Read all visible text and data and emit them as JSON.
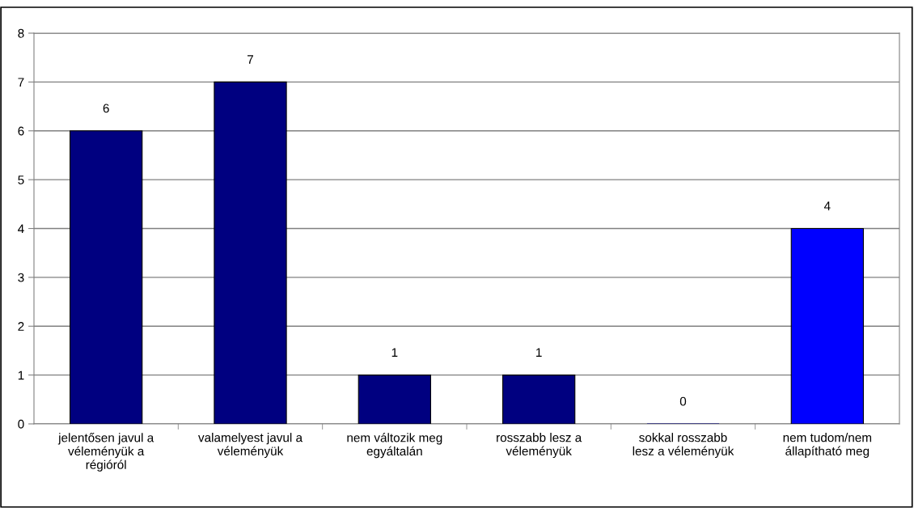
{
  "chart_data": {
    "type": "bar",
    "categories": [
      "jelentősen javul a\nvéleményük a\nrégióról",
      "valamelyest javul a\nvéleményük",
      "nem változik meg\negyáltalán",
      "rosszabb lesz a\nvéleményük",
      "sokkal rosszabb\nlesz a véleményük",
      "nem tudom/nem\nállapítható meg"
    ],
    "values": [
      6,
      7,
      1,
      1,
      0,
      4
    ],
    "colors": [
      "#000080",
      "#000080",
      "#000080",
      "#000080",
      "#000080",
      "#0000ff"
    ],
    "ylim": [
      0,
      8
    ],
    "yticks": [
      0,
      1,
      2,
      3,
      4,
      5,
      6,
      7,
      8
    ],
    "grid": "y",
    "data_labels": true
  }
}
